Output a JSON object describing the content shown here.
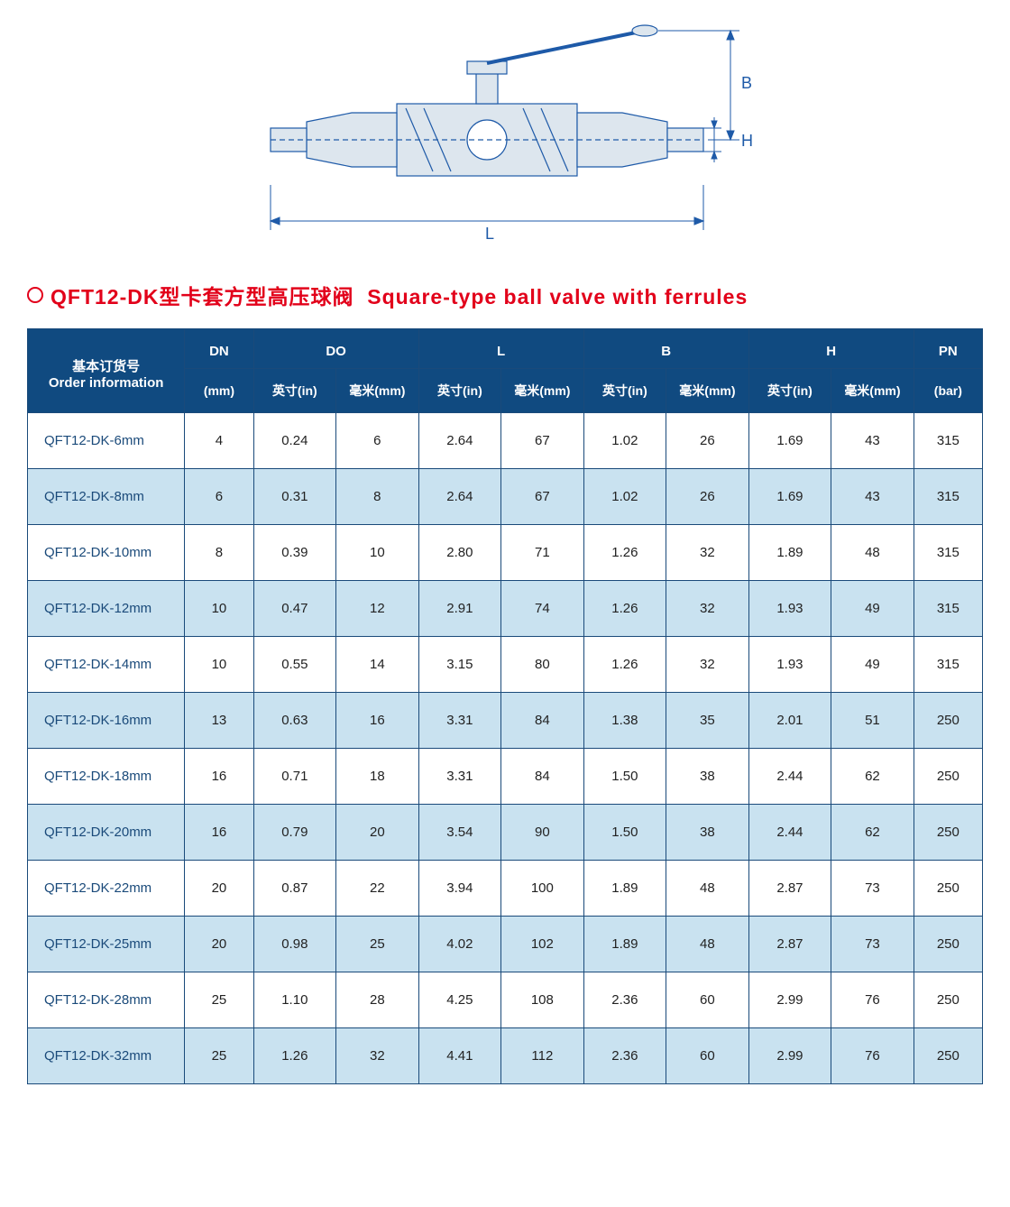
{
  "diagram": {
    "labels": {
      "L": "L",
      "B": "B",
      "H": "H"
    },
    "line_color": "#1e5aa8",
    "fill_color": "#dde6ee"
  },
  "title": {
    "bullet_color": "#e2001a",
    "text_cn": "QFT12-DK型卡套方型高压球阀",
    "text_en": "Square-type ball valve with ferrules"
  },
  "table": {
    "header_bg": "#104a80",
    "header_fg": "#ffffff",
    "row_alt_bg": "#c9e2f0",
    "border_color": "#1a4a7a",
    "groups": {
      "order": {
        "line1": "基本订货号",
        "line2": "Order information"
      },
      "dn": {
        "label": "DN",
        "unit": "(mm)"
      },
      "do": {
        "label": "DO",
        "unit_in": "英寸(in)",
        "unit_mm": "毫米(mm)"
      },
      "l": {
        "label": "L",
        "unit_in": "英寸(in)",
        "unit_mm": "毫米(mm)"
      },
      "b": {
        "label": "B",
        "unit_in": "英寸(in)",
        "unit_mm": "毫米(mm)"
      },
      "h": {
        "label": "H",
        "unit_in": "英寸(in)",
        "unit_mm": "毫米(mm)"
      },
      "pn": {
        "label": "PN",
        "unit": "(bar)"
      }
    },
    "rows": [
      {
        "order": "QFT12-DK-6mm",
        "dn": "4",
        "do_in": "0.24",
        "do_mm": "6",
        "l_in": "2.64",
        "l_mm": "67",
        "b_in": "1.02",
        "b_mm": "26",
        "h_in": "1.69",
        "h_mm": "43",
        "pn": "315"
      },
      {
        "order": "QFT12-DK-8mm",
        "dn": "6",
        "do_in": "0.31",
        "do_mm": "8",
        "l_in": "2.64",
        "l_mm": "67",
        "b_in": "1.02",
        "b_mm": "26",
        "h_in": "1.69",
        "h_mm": "43",
        "pn": "315"
      },
      {
        "order": "QFT12-DK-10mm",
        "dn": "8",
        "do_in": "0.39",
        "do_mm": "10",
        "l_in": "2.80",
        "l_mm": "71",
        "b_in": "1.26",
        "b_mm": "32",
        "h_in": "1.89",
        "h_mm": "48",
        "pn": "315"
      },
      {
        "order": "QFT12-DK-12mm",
        "dn": "10",
        "do_in": "0.47",
        "do_mm": "12",
        "l_in": "2.91",
        "l_mm": "74",
        "b_in": "1.26",
        "b_mm": "32",
        "h_in": "1.93",
        "h_mm": "49",
        "pn": "315"
      },
      {
        "order": "QFT12-DK-14mm",
        "dn": "10",
        "do_in": "0.55",
        "do_mm": "14",
        "l_in": "3.15",
        "l_mm": "80",
        "b_in": "1.26",
        "b_mm": "32",
        "h_in": "1.93",
        "h_mm": "49",
        "pn": "315"
      },
      {
        "order": "QFT12-DK-16mm",
        "dn": "13",
        "do_in": "0.63",
        "do_mm": "16",
        "l_in": "3.31",
        "l_mm": "84",
        "b_in": "1.38",
        "b_mm": "35",
        "h_in": "2.01",
        "h_mm": "51",
        "pn": "250"
      },
      {
        "order": "QFT12-DK-18mm",
        "dn": "16",
        "do_in": "0.71",
        "do_mm": "18",
        "l_in": "3.31",
        "l_mm": "84",
        "b_in": "1.50",
        "b_mm": "38",
        "h_in": "2.44",
        "h_mm": "62",
        "pn": "250"
      },
      {
        "order": "QFT12-DK-20mm",
        "dn": "16",
        "do_in": "0.79",
        "do_mm": "20",
        "l_in": "3.54",
        "l_mm": "90",
        "b_in": "1.50",
        "b_mm": "38",
        "h_in": "2.44",
        "h_mm": "62",
        "pn": "250"
      },
      {
        "order": "QFT12-DK-22mm",
        "dn": "20",
        "do_in": "0.87",
        "do_mm": "22",
        "l_in": "3.94",
        "l_mm": "100",
        "b_in": "1.89",
        "b_mm": "48",
        "h_in": "2.87",
        "h_mm": "73",
        "pn": "250"
      },
      {
        "order": "QFT12-DK-25mm",
        "dn": "20",
        "do_in": "0.98",
        "do_mm": "25",
        "l_in": "4.02",
        "l_mm": "102",
        "b_in": "1.89",
        "b_mm": "48",
        "h_in": "2.87",
        "h_mm": "73",
        "pn": "250"
      },
      {
        "order": "QFT12-DK-28mm",
        "dn": "25",
        "do_in": "1.10",
        "do_mm": "28",
        "l_in": "4.25",
        "l_mm": "108",
        "b_in": "2.36",
        "b_mm": "60",
        "h_in": "2.99",
        "h_mm": "76",
        "pn": "250"
      },
      {
        "order": "QFT12-DK-32mm",
        "dn": "25",
        "do_in": "1.26",
        "do_mm": "32",
        "l_in": "4.41",
        "l_mm": "112",
        "b_in": "2.36",
        "b_mm": "60",
        "h_in": "2.99",
        "h_mm": "76",
        "pn": "250"
      }
    ]
  }
}
